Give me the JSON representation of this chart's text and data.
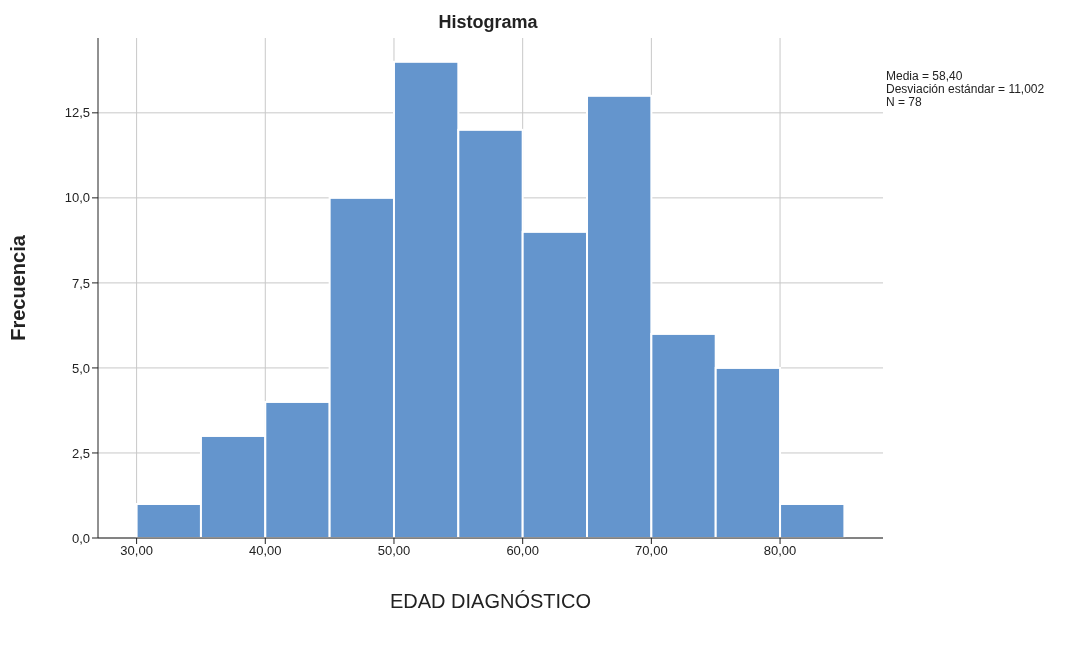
{
  "chart_data": {
    "type": "histogram",
    "title": "Histograma",
    "xlabel": "EDAD DIAGNÓSTICO",
    "ylabel": "Frecuencia",
    "bins": [
      30,
      35,
      40,
      45,
      50,
      55,
      60,
      65,
      70,
      75,
      80,
      85
    ],
    "values": [
      1,
      3,
      4,
      10,
      14,
      12,
      9,
      13,
      6,
      5,
      1
    ],
    "color": "#6495cd",
    "xlim": [
      27,
      88
    ],
    "xticks": [
      {
        "value": 30,
        "label": "30,00"
      },
      {
        "value": 40,
        "label": "40,00"
      },
      {
        "value": 50,
        "label": "50,00"
      },
      {
        "value": 60,
        "label": "60,00"
      },
      {
        "value": 70,
        "label": "70,00"
      },
      {
        "value": 80,
        "label": "80,00"
      }
    ],
    "ylim": [
      0,
      14.7
    ],
    "yticks": [
      {
        "value": 0,
        "label": "0,0"
      },
      {
        "value": 2.5,
        "label": "2,5"
      },
      {
        "value": 5,
        "label": "5,0"
      },
      {
        "value": 7.5,
        "label": "7,5"
      },
      {
        "value": 10,
        "label": "10,0"
      },
      {
        "value": 12.5,
        "label": "12,5"
      }
    ],
    "grid": true,
    "annotations": [
      "Media = 58,40",
      "Desviación estándar = 11,002",
      "N = 78"
    ]
  }
}
